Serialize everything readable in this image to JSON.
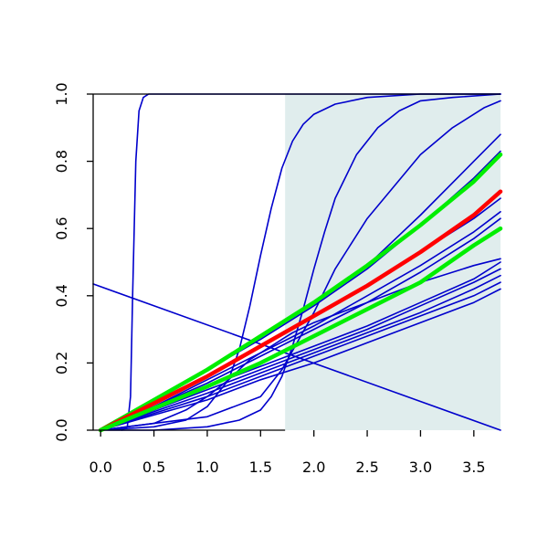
{
  "chart_data": {
    "type": "line",
    "title": "",
    "xlabel": "",
    "ylabel": "",
    "xlim": [
      -0.07,
      3.75
    ],
    "ylim": [
      0.0,
      1.0
    ],
    "x_ticks": [
      "0.0",
      "0.5",
      "1.0",
      "1.5",
      "2.0",
      "2.5",
      "3.0",
      "3.5"
    ],
    "y_ticks": [
      "0.0",
      "0.2",
      "0.4",
      "0.6",
      "0.8",
      "1.0"
    ],
    "shaded_region": {
      "x_from": 1.73,
      "x_to": 3.75,
      "color": "#e0eded"
    },
    "colors": {
      "blue": "#0000cc",
      "red": "#ff0000",
      "green": "#00ee00"
    },
    "grid": false,
    "series": [
      {
        "color": "blue",
        "width": 1.6,
        "x": [
          0.2,
          0.25,
          0.28,
          0.3,
          0.33,
          0.36,
          0.4,
          0.45,
          0.6,
          3.75
        ],
        "y": [
          0.0,
          0.01,
          0.1,
          0.4,
          0.8,
          0.95,
          0.99,
          1.0,
          1.0,
          1.0
        ]
      },
      {
        "color": "blue",
        "width": 1.6,
        "x": [
          0.0,
          0.5,
          0.8,
          1.0,
          1.2,
          1.3,
          1.4,
          1.5,
          1.6,
          1.7,
          1.8,
          1.9,
          2.0,
          2.2,
          2.5,
          3.0,
          3.75
        ],
        "y": [
          0.0,
          0.01,
          0.03,
          0.07,
          0.15,
          0.24,
          0.37,
          0.52,
          0.66,
          0.78,
          0.86,
          0.91,
          0.94,
          0.97,
          0.99,
          1.0,
          1.0
        ]
      },
      {
        "color": "blue",
        "width": 1.6,
        "x": [
          0.0,
          0.5,
          1.0,
          1.3,
          1.5,
          1.6,
          1.7,
          1.8,
          1.9,
          2.0,
          2.1,
          2.2,
          2.4,
          2.6,
          2.8,
          3.0,
          3.3,
          3.75
        ],
        "y": [
          0.0,
          0.0,
          0.01,
          0.03,
          0.06,
          0.1,
          0.16,
          0.25,
          0.36,
          0.48,
          0.59,
          0.69,
          0.82,
          0.9,
          0.95,
          0.98,
          0.99,
          1.0
        ]
      },
      {
        "color": "blue",
        "width": 1.6,
        "x": [
          0.0,
          0.5,
          1.0,
          1.5,
          1.7,
          2.0,
          2.2,
          2.5,
          3.0,
          3.3,
          3.6,
          3.75
        ],
        "y": [
          0.0,
          0.02,
          0.04,
          0.1,
          0.18,
          0.35,
          0.48,
          0.63,
          0.82,
          0.9,
          0.96,
          0.98
        ]
      },
      {
        "color": "blue",
        "width": 1.6,
        "x": [
          -0.07,
          3.75
        ],
        "y": [
          0.435,
          0.0
        ]
      },
      {
        "color": "blue",
        "width": 1.6,
        "x": [
          0.0,
          0.5,
          1.0,
          1.5,
          2.0,
          2.5,
          3.0,
          3.5,
          3.75
        ],
        "y": [
          0.0,
          0.09,
          0.18,
          0.28,
          0.38,
          0.49,
          0.64,
          0.8,
          0.88
        ]
      },
      {
        "color": "blue",
        "width": 1.6,
        "x": [
          0.0,
          0.5,
          1.0,
          1.5,
          2.0,
          2.5,
          3.0,
          3.5,
          3.75
        ],
        "y": [
          0.0,
          0.09,
          0.18,
          0.27,
          0.37,
          0.48,
          0.61,
          0.75,
          0.83
        ]
      },
      {
        "color": "blue",
        "width": 1.6,
        "x": [
          0.0,
          0.5,
          1.0,
          1.5,
          2.0,
          2.5,
          3.0,
          3.5,
          3.75
        ],
        "y": [
          0.0,
          0.08,
          0.16,
          0.25,
          0.34,
          0.43,
          0.53,
          0.63,
          0.69
        ]
      },
      {
        "color": "blue",
        "width": 1.6,
        "x": [
          0.0,
          0.5,
          1.0,
          1.5,
          2.0,
          2.5,
          3.0,
          3.5,
          3.75
        ],
        "y": [
          0.0,
          0.07,
          0.15,
          0.23,
          0.31,
          0.4,
          0.49,
          0.59,
          0.65
        ]
      },
      {
        "color": "blue",
        "width": 1.6,
        "x": [
          0.0,
          0.5,
          1.0,
          1.5,
          2.0,
          2.5,
          3.0,
          3.5,
          3.75
        ],
        "y": [
          0.0,
          0.07,
          0.14,
          0.22,
          0.3,
          0.38,
          0.47,
          0.57,
          0.63
        ]
      },
      {
        "color": "blue",
        "width": 1.6,
        "x": [
          0.0,
          0.5,
          1.0,
          1.5,
          2.0,
          2.5,
          3.0,
          3.5,
          3.75
        ],
        "y": [
          0.0,
          0.06,
          0.13,
          0.19,
          0.25,
          0.31,
          0.38,
          0.45,
          0.5
        ]
      },
      {
        "color": "blue",
        "width": 1.6,
        "x": [
          0.0,
          0.5,
          1.0,
          1.5,
          2.0,
          2.5,
          3.0,
          3.5,
          3.75
        ],
        "y": [
          0.0,
          0.06,
          0.12,
          0.18,
          0.24,
          0.3,
          0.37,
          0.44,
          0.48
        ]
      },
      {
        "color": "blue",
        "width": 1.6,
        "x": [
          0.0,
          0.5,
          1.0,
          1.5,
          2.0,
          2.5,
          3.0,
          3.5,
          3.75
        ],
        "y": [
          0.0,
          0.055,
          0.11,
          0.17,
          0.23,
          0.29,
          0.35,
          0.42,
          0.46
        ]
      },
      {
        "color": "blue",
        "width": 1.6,
        "x": [
          0.0,
          0.5,
          1.0,
          1.5,
          2.0,
          2.5,
          3.0,
          3.5,
          3.75
        ],
        "y": [
          0.0,
          0.05,
          0.1,
          0.16,
          0.22,
          0.28,
          0.34,
          0.4,
          0.44
        ]
      },
      {
        "color": "blue",
        "width": 1.6,
        "x": [
          0.0,
          0.5,
          1.0,
          1.5,
          2.0,
          2.5,
          3.0,
          3.5,
          3.75
        ],
        "y": [
          0.0,
          0.045,
          0.09,
          0.15,
          0.2,
          0.26,
          0.32,
          0.38,
          0.42
        ]
      },
      {
        "color": "blue",
        "width": 1.6,
        "x": [
          0.0,
          0.5,
          0.8,
          1.0,
          1.2,
          1.4,
          1.5,
          1.6,
          1.7,
          1.8,
          2.0,
          2.5,
          3.0,
          3.5,
          3.75
        ],
        "y": [
          0.0,
          0.02,
          0.06,
          0.1,
          0.15,
          0.21,
          0.23,
          0.25,
          0.27,
          0.29,
          0.32,
          0.38,
          0.44,
          0.49,
          0.51
        ]
      },
      {
        "color": "green",
        "width": 4.5,
        "x": [
          0.0,
          0.5,
          1.0,
          1.5,
          2.0,
          2.5,
          3.0,
          3.5,
          3.75
        ],
        "y": [
          0.0,
          0.09,
          0.18,
          0.28,
          0.38,
          0.49,
          0.61,
          0.74,
          0.82
        ]
      },
      {
        "color": "red",
        "width": 4.5,
        "x": [
          0.0,
          0.5,
          1.0,
          1.5,
          2.0,
          2.5,
          3.0,
          3.5,
          3.75
        ],
        "y": [
          0.0,
          0.08,
          0.16,
          0.25,
          0.34,
          0.43,
          0.53,
          0.64,
          0.71
        ]
      },
      {
        "color": "green",
        "width": 4.5,
        "x": [
          0.0,
          0.5,
          1.0,
          1.5,
          2.0,
          2.5,
          3.0,
          3.5,
          3.75
        ],
        "y": [
          0.0,
          0.065,
          0.13,
          0.2,
          0.28,
          0.36,
          0.44,
          0.55,
          0.6
        ]
      }
    ]
  }
}
